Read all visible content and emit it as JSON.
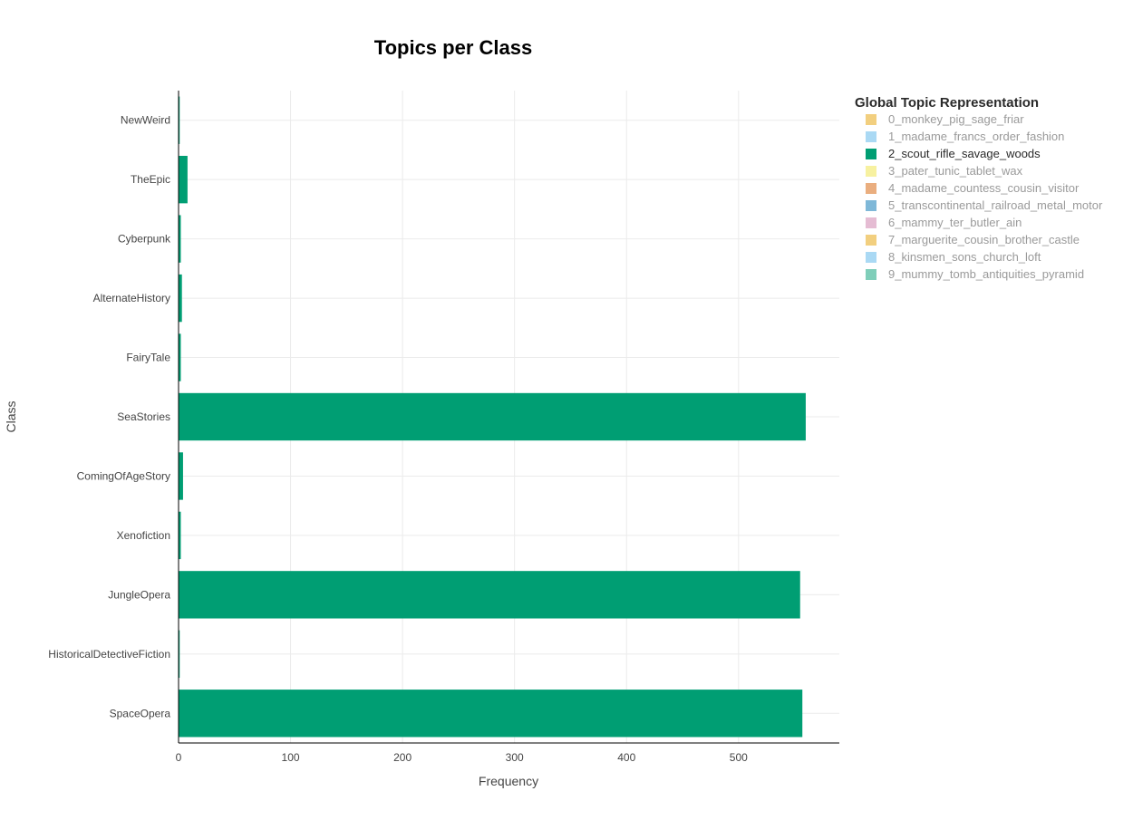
{
  "chart_data": {
    "type": "bar",
    "orientation": "horizontal",
    "title": "Topics per Class",
    "xlabel": "Frequency",
    "ylabel": "Class",
    "xlim": [
      0,
      590
    ],
    "x_ticks": [
      0,
      100,
      200,
      300,
      400,
      500
    ],
    "grid": true,
    "legend_title": "Global Topic Representation",
    "legend_position": "right",
    "categories": [
      "NewWeird",
      "TheEpic",
      "Cyberpunk",
      "AlternateHistory",
      "FairyTale",
      "SeaStories",
      "ComingOfAgeStory",
      "Xenofiction",
      "JungleOpera",
      "HistoricalDetectiveFiction",
      "SpaceOpera"
    ],
    "series": [
      {
        "name": "2_scout_rifle_savage_woods",
        "color": "#009E73",
        "values": [
          1,
          8,
          2,
          3,
          2,
          560,
          4,
          2,
          555,
          1,
          557
        ]
      }
    ],
    "legend": [
      {
        "label": "0_monkey_pig_sage_friar",
        "color": "#E69F00",
        "active": false
      },
      {
        "label": "1_madame_francs_order_fashion",
        "color": "#56B4E9",
        "active": false
      },
      {
        "label": "2_scout_rifle_savage_woods",
        "color": "#009E73",
        "active": true
      },
      {
        "label": "3_pater_tunic_tablet_wax",
        "color": "#F0E442",
        "active": false
      },
      {
        "label": "4_madame_countess_cousin_visitor",
        "color": "#D55E00",
        "active": false
      },
      {
        "label": "5_transcontinental_railroad_metal_motor",
        "color": "#0072B2",
        "active": false
      },
      {
        "label": "6_mammy_ter_butler_ain",
        "color": "#CC79A7",
        "active": false
      },
      {
        "label": "7_marguerite_cousin_brother_castle",
        "color": "#E69F00",
        "active": false
      },
      {
        "label": "8_kinsmen_sons_church_loft",
        "color": "#56B4E9",
        "active": false
      },
      {
        "label": "9_mummy_tomb_antiquities_pyramid",
        "color": "#009E73",
        "active": false
      }
    ]
  }
}
